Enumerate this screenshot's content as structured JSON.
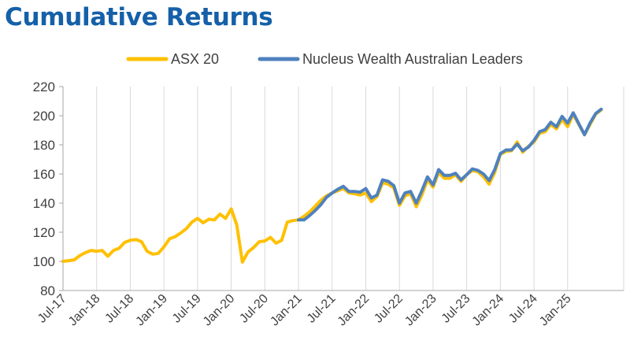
{
  "chart_data": {
    "type": "line",
    "title": "Cumulative Returns",
    "xlabel": "",
    "ylabel": "",
    "ylim": [
      80,
      220
    ],
    "yticks": [
      80,
      100,
      120,
      140,
      160,
      180,
      200,
      220
    ],
    "x_tick_labels": [
      "Jul-17",
      "Jan-18",
      "Jul-18",
      "Jan-19",
      "Jul-19",
      "Jan-20",
      "Jul-20",
      "Jan-21",
      "Jul-21",
      "Jan-22",
      "Jul-22",
      "Jan-23",
      "Jul-23",
      "Jan-24",
      "Jul-24",
      "Jan-25"
    ],
    "x_start": "Jul-17",
    "x_end": "Nov-25",
    "grid": "vertical",
    "legend": "top",
    "series": [
      {
        "name": "ASX 20",
        "color": "#FFC000",
        "start": "Jul-17",
        "values": [
          100,
          100.5,
          101,
          104,
          106,
          107.5,
          107,
          107.5,
          103.5,
          107.5,
          109,
          113,
          114.5,
          115,
          113.5,
          107,
          105,
          105.5,
          110,
          115.5,
          117,
          119.5,
          122.5,
          127,
          129.5,
          126.5,
          129,
          128.5,
          132.5,
          129.5,
          136,
          125,
          99.5,
          106.5,
          109.5,
          113.5,
          114,
          116.5,
          112.5,
          114.5,
          127,
          128,
          128.5,
          131,
          134,
          138,
          142,
          145,
          147,
          148.5,
          150,
          147,
          146.5,
          145.5,
          147,
          141,
          144.5,
          154,
          153,
          150.5,
          138.5,
          145,
          146.5,
          137.5,
          145.5,
          156,
          151,
          161,
          157,
          157,
          159.5,
          155,
          159.5,
          162.5,
          161.5,
          158,
          153,
          161,
          173.5,
          175.5,
          176,
          182,
          175,
          179,
          182,
          188,
          189,
          194,
          191,
          197.5,
          192.5,
          201,
          194,
          187,
          194,
          201,
          204
        ]
      },
      {
        "name": "Nucleus Wealth Australian Leaders",
        "color": "#4F81BD",
        "start": "Jan-21",
        "values": [
          128.5,
          128.5,
          131.5,
          135,
          139,
          144,
          147,
          149.5,
          151.5,
          148,
          148,
          147.5,
          150,
          143.5,
          145.5,
          156,
          155,
          152,
          140,
          147,
          148,
          140,
          148.5,
          158,
          152.5,
          163,
          159,
          159,
          160.5,
          156,
          159.5,
          163.5,
          162.5,
          160,
          155.5,
          163,
          174,
          176.5,
          176.5,
          180.5,
          176,
          178.5,
          183,
          189,
          190.5,
          195.5,
          192.5,
          199.5,
          195,
          202,
          194.5,
          187,
          195,
          201.5,
          204.5
        ]
      }
    ]
  }
}
